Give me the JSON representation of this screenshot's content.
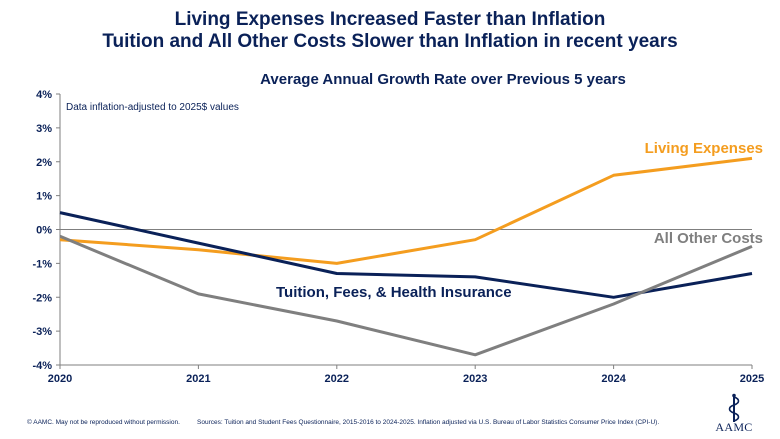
{
  "header": {
    "title_line1": "Living Expenses Increased Faster than Inflation",
    "title_line2": "Tuition and All Other Costs Slower than Inflation in recent years"
  },
  "chart_data": {
    "type": "line",
    "title": "Average Annual Growth Rate over Previous 5 years",
    "annotation": "Data inflation-adjusted to 2025$ values",
    "xlabel": "",
    "ylabel": "",
    "categories": [
      "2020",
      "2021",
      "2022",
      "2023",
      "2024",
      "2025"
    ],
    "ylim": [
      -4,
      4
    ],
    "yticks": [
      -4,
      -3,
      -2,
      -1,
      0,
      1,
      2,
      3,
      4
    ],
    "ytick_labels": [
      "-4%",
      "-3%",
      "-2%",
      "-1%",
      "0%",
      "1%",
      "2%",
      "3%",
      "4%"
    ],
    "series": [
      {
        "name": "Living Expenses",
        "color": "#f49d1f",
        "values": [
          -0.3,
          -0.6,
          -1.0,
          -0.3,
          1.6,
          2.1
        ]
      },
      {
        "name": "Tuition, Fees, & Health Insurance",
        "color": "#0a2158",
        "values": [
          0.5,
          -0.4,
          -1.3,
          -1.4,
          -2.0,
          -1.3
        ]
      },
      {
        "name": "All Other Costs",
        "color": "#7f7f7f",
        "values": [
          -0.2,
          -1.9,
          -2.7,
          -3.7,
          -2.2,
          -0.5
        ]
      }
    ]
  },
  "footer": {
    "copyright": "© AAMC. May not be reproduced without permission.",
    "sources": "Sources: Tuition and Student Fees Questionnaire, 2015-2016 to 2024-2025. Inflation adjusted via U.S. Bureau of Labor Statistics Consumer Price Index (CPI-U)."
  },
  "logo": {
    "text": "AAMC"
  }
}
